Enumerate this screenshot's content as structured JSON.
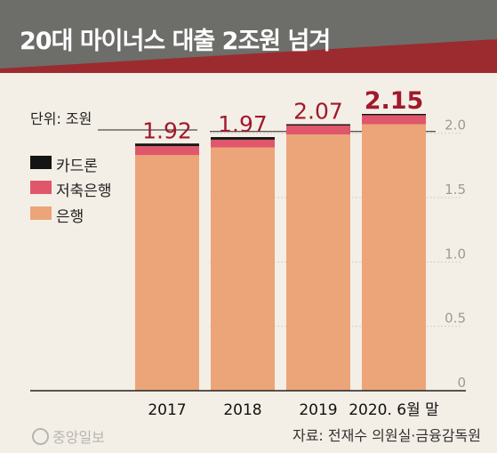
{
  "title": "20대 마이너스 대출 2조원 넘겨",
  "unit_label": "단위: 조원",
  "legend": [
    {
      "label": "카드론",
      "color": "#141414"
    },
    {
      "label": "저축은행",
      "color": "#e0566a"
    },
    {
      "label": "은행",
      "color": "#eba578"
    }
  ],
  "source": "자료: 전재수 의원실·금융감독원",
  "logo_text": "중앙일보",
  "colors": {
    "banner_dark": "#6d6d6a",
    "banner_red": "#9b2b2f",
    "background": "#f4efe6",
    "total_label": "#a0192c",
    "tick_label": "#9a9a9a"
  },
  "chart_data": {
    "type": "bar",
    "stacked": true,
    "categories": [
      "2017",
      "2018",
      "2019",
      "2020. 6월 말"
    ],
    "series": [
      {
        "name": "은행",
        "values": [
          1.83,
          1.89,
          1.99,
          2.07
        ]
      },
      {
        "name": "저축은행",
        "values": [
          0.07,
          0.06,
          0.07,
          0.07
        ]
      },
      {
        "name": "카드론",
        "values": [
          0.02,
          0.02,
          0.01,
          0.01
        ]
      }
    ],
    "totals": [
      1.92,
      1.97,
      2.07,
      2.15
    ],
    "total_labels": [
      "1.92",
      "1.97",
      "2.07",
      "2.15"
    ],
    "ylim": [
      0,
      2.15
    ],
    "yticks": [
      0,
      0.5,
      1.0,
      1.5,
      2.0
    ],
    "ytick_labels": [
      "0",
      "0.5",
      "1.0",
      "1.5",
      "2.0"
    ],
    "grid": true,
    "legend_position": "top-left"
  }
}
